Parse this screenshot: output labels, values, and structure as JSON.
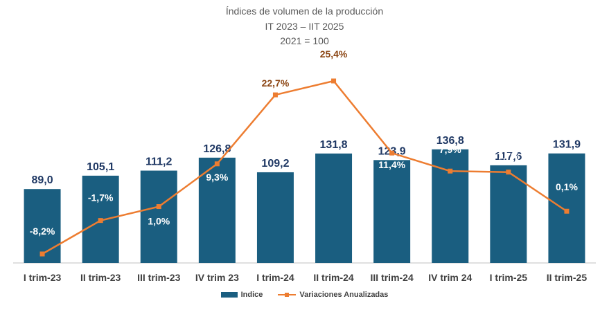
{
  "chart_data": {
    "type": "bar",
    "title": "Índices de volumen de la producción",
    "subtitle": "IT 2023 – IIT 2025",
    "subtitle2": "2021 = 100",
    "categories": [
      "I trim-23",
      "II trim-23",
      "III trim-23",
      "IV trim 23",
      "I trim-24",
      "II trim-24",
      "III trim-24",
      "IV trim 24",
      "I trim-25",
      "II trim-25"
    ],
    "series": [
      {
        "name": "Indice",
        "kind": "bar",
        "color": "#1a5e80",
        "values": [
          89.0,
          105.1,
          111.2,
          126.8,
          109.2,
          131.8,
          123.9,
          136.8,
          117.6,
          131.9
        ],
        "labels": [
          "89,0",
          "105,1",
          "111,2",
          "126,8",
          "109,2",
          "131,8",
          "123,9",
          "136,8",
          "117,6",
          "131,9"
        ]
      },
      {
        "name": "Variaciones Anualizadas",
        "kind": "line",
        "color": "#ed7d31",
        "values": [
          -8.2,
          -1.7,
          1.0,
          9.3,
          22.7,
          25.4,
          11.4,
          7.9,
          7.7,
          0.1
        ],
        "labels": [
          "-8,2%",
          "-1,7%",
          "1,0%",
          "9,3%",
          "22,7%",
          "25,4%",
          "11,4%",
          "7,9%",
          "7,7%",
          "0,1%"
        ]
      }
    ],
    "primary_ylim": [
      0,
      155
    ],
    "secondary_ylim": [
      -11,
      27
    ],
    "bar_label_color": "#1f3864",
    "line_label_color": "#ffffff",
    "line_label_highlight_color": "#8b4513",
    "legend_position": "bottom",
    "grid": false
  }
}
